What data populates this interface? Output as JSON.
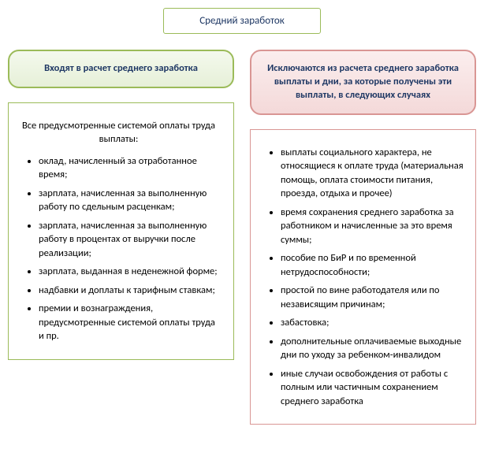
{
  "title": {
    "text": "Средний заработок",
    "border_color": "#9bbb59",
    "background": "#ffffff",
    "text_color": "#1f3864"
  },
  "left": {
    "header": {
      "text": "Входят в расчет среднего заработка",
      "border_color": "#9bbb59",
      "background": "linear-gradient(#f4f9ed,#e6f0d8)",
      "text_color": "#1f3864"
    },
    "content": {
      "intro": "Все предусмотренные системой оплаты труда выплаты:",
      "items": [
        "оклад, начисленный за отработанное время;",
        "зарплата, начисленная за выполненную работу по сдельным расценкам;",
        "зарплата, начисленная за выполненную работу в процентах от выручки после реализации;",
        "зарплата, выданная в неденежной форме;",
        "надбавки и доплаты к тарифным ставкам;",
        "премии и вознаграждения, предусмотренные системой оплаты труда и пр."
      ],
      "border_color": "#9bbb59",
      "text_color": "#000000",
      "background": "#ffffff"
    }
  },
  "right": {
    "header": {
      "text": "Исключаются из расчета среднего заработка выплаты и дни, за которые получены эти выплаты, в следующих случаях",
      "border_color": "#d99694",
      "background": "linear-gradient(#fbeeee,#f4d9d9)",
      "text_color": "#1f3864"
    },
    "content": {
      "intro": "",
      "items": [
        "выплаты социального характера, не относящиеся к оплате труда (материальная помощь, оплата стоимости питания, проезда, отдыха и прочее)",
        "время сохранения среднего заработка за работником и начисленные за это время суммы;",
        "пособие по БиР и по временной нетрудоспособности;",
        "простой по вине работодателя или по независящим причинам;",
        "забастовка;",
        "дополнительные оплачиваемые выходные дни по уходу за ребенком-инвалидом",
        "иные случаи освобождения от работы с полным или частичным сохранением среднего заработка"
      ],
      "border_color": "#d99694",
      "text_color": "#000000",
      "background": "#ffffff"
    }
  }
}
